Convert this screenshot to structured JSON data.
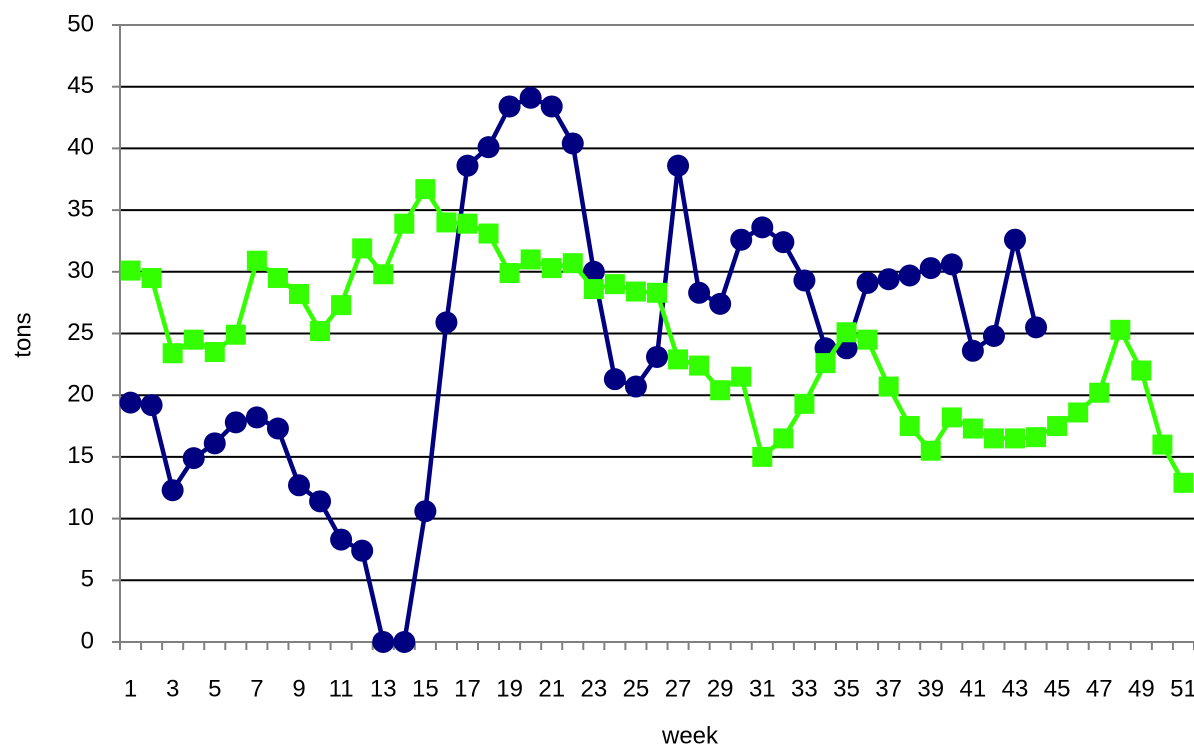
{
  "chart_data": {
    "type": "line",
    "x_label": "week",
    "y_label": "tons",
    "categories": [
      1,
      null,
      3,
      null,
      5,
      null,
      7,
      null,
      9,
      null,
      11,
      null,
      13,
      null,
      15,
      null,
      17,
      null,
      19,
      null,
      21,
      null,
      23,
      null,
      25,
      null,
      27,
      null,
      29,
      null,
      31,
      null,
      33,
      null,
      35,
      null,
      37,
      null,
      39,
      null,
      41,
      null,
      43,
      null,
      45,
      null,
      47,
      null,
      49,
      null,
      51
    ],
    "series": [
      {
        "color": "#000080",
        "marker": "circle",
        "values": [
          19.4,
          19.2,
          12.3,
          14.9,
          16.1,
          17.8,
          18.2,
          17.3,
          12.7,
          11.4,
          8.3,
          7.4,
          0,
          0,
          10.6,
          25.9,
          38.6,
          40.1,
          43.4,
          44.1,
          43.4,
          40.4,
          30,
          21.3,
          20.7,
          23.1,
          38.6,
          28.3,
          27.4,
          32.6,
          33.6,
          32.4,
          29.3,
          23.8,
          23.8,
          29.1,
          29.4,
          29.7,
          30.3,
          30.6,
          23.6,
          24.8,
          32.6,
          25.5,
          null,
          null,
          null,
          null,
          null,
          null,
          null
        ]
      },
      {
        "color": "#33ff00",
        "marker": "square",
        "values": [
          30.1,
          29.5,
          23.4,
          24.5,
          23.5,
          24.9,
          30.9,
          29.5,
          28.2,
          25.2,
          27.3,
          31.9,
          29.8,
          33.9,
          36.7,
          34,
          33.9,
          33.1,
          29.9,
          31,
          30.3,
          30.7,
          28.6,
          29,
          28.4,
          28.3,
          22.9,
          22.4,
          20.4,
          21.5,
          15,
          16.5,
          19.3,
          22.6,
          25.1,
          24.5,
          20.7,
          17.5,
          15.5,
          18.2,
          17.3,
          16.5,
          16.5,
          16.6,
          17.5,
          18.6,
          20.2,
          25.3,
          22,
          16,
          12.9
        ]
      }
    ],
    "ylim": [
      0,
      50
    ],
    "yticks": [
      0,
      5,
      10,
      15,
      20,
      25,
      30,
      35,
      40,
      45,
      50
    ],
    "grid": true
  }
}
